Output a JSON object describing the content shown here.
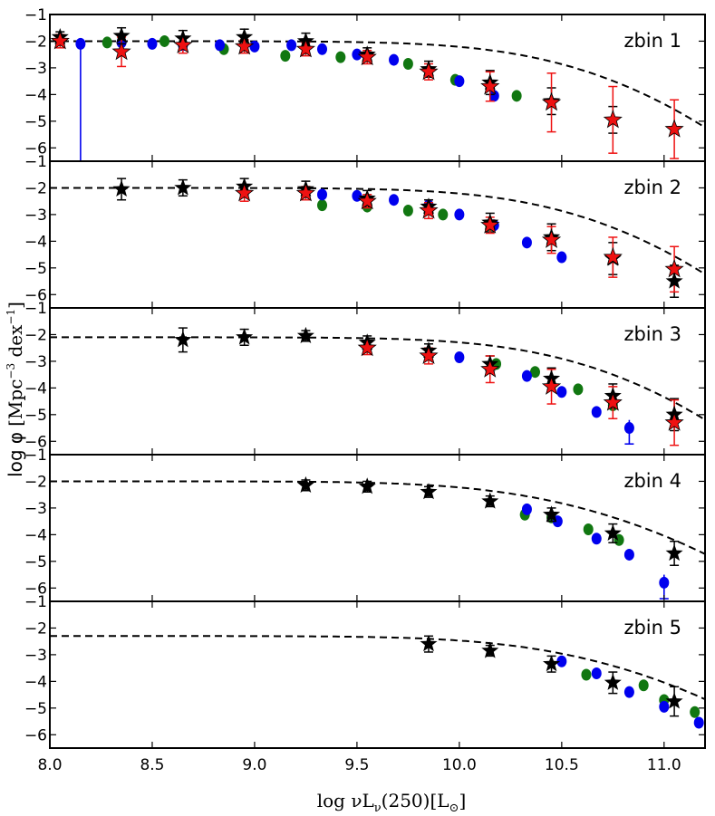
{
  "chart_data": {
    "type": "scatter",
    "xlabel": "log νL",
    "xlabel_sub": "ν",
    "xlabel_rest": "(250)[L",
    "xlabel_sunsub": "⊙",
    "xlabel_end": "]",
    "ylabel_main": "log φ",
    "ylabel_units": "[Mpc",
    "ylabel_sup1": "−3",
    "ylabel_mid": " dex",
    "ylabel_sup2": "−1",
    "ylabel_end": "]",
    "xlim": [
      8.0,
      11.2
    ],
    "ylim": [
      -6.5,
      -1
    ],
    "xticks": [
      "8.0",
      "8.5",
      "9.0",
      "9.5",
      "10.0",
      "10.5",
      "11.0"
    ],
    "yticks": [
      "−1",
      "−2",
      "−3",
      "−4",
      "−5",
      "−6"
    ],
    "colors": {
      "blue": "#0000ee",
      "green": "#117711",
      "red": "#ee1111",
      "black": "#000000"
    },
    "panels": [
      {
        "label": "zbin 1",
        "model": {
          "phi_star": -2.0,
          "log_L_star": 9.95,
          "alpha": 1.0,
          "sigma": 0.33
        },
        "blue": [
          [
            8.15,
            -2.1
          ],
          [
            8.35,
            -2.05
          ],
          [
            8.5,
            -2.1
          ],
          [
            8.65,
            -2.15
          ],
          [
            8.83,
            -2.15
          ],
          [
            9.0,
            -2.2
          ],
          [
            9.18,
            -2.15
          ],
          [
            9.33,
            -2.3
          ],
          [
            9.5,
            -2.5
          ],
          [
            9.68,
            -2.7
          ],
          [
            10.0,
            -3.5
          ],
          [
            10.17,
            -4.05
          ]
        ],
        "blue_err": [
          [
            8.15,
            -2.1,
            -6.5,
            -2.05
          ]
        ],
        "green": [
          [
            8.28,
            -2.05
          ],
          [
            8.56,
            -2.0
          ],
          [
            8.85,
            -2.3
          ],
          [
            9.15,
            -2.55
          ],
          [
            9.42,
            -2.6
          ],
          [
            9.75,
            -2.85
          ],
          [
            9.98,
            -3.45
          ],
          [
            10.28,
            -4.05
          ]
        ],
        "red": [
          [
            8.05,
            -2.0,
            0.25
          ],
          [
            8.35,
            -2.4,
            0.55
          ],
          [
            8.65,
            -2.15,
            0.3
          ],
          [
            8.95,
            -2.2,
            0.25
          ],
          [
            9.25,
            -2.3,
            0.25
          ],
          [
            9.55,
            -2.6,
            0.25
          ],
          [
            9.85,
            -3.15,
            0.3
          ],
          [
            10.15,
            -3.7,
            0.55
          ],
          [
            10.45,
            -4.3,
            1.1
          ],
          [
            10.75,
            -4.95,
            1.25
          ],
          [
            11.05,
            -5.3,
            1.1
          ]
        ],
        "black": [
          [
            8.05,
            -1.85,
            0.2
          ],
          [
            8.35,
            -1.8,
            0.3
          ],
          [
            8.65,
            -1.9,
            0.3
          ],
          [
            8.95,
            -1.85,
            0.3
          ],
          [
            9.25,
            -2.0,
            0.3
          ],
          [
            9.55,
            -2.5,
            0.25
          ],
          [
            9.85,
            -3.05,
            0.3
          ],
          [
            10.15,
            -3.55,
            0.45
          ],
          [
            10.45,
            -4.25,
            0.5
          ],
          [
            10.75,
            -4.95,
            0.5
          ]
        ]
      },
      {
        "label": "zbin 2",
        "model": {
          "phi_star": -2.0,
          "log_L_star": 9.95,
          "alpha": 1.0,
          "sigma": 0.33
        },
        "blue": [
          [
            9.33,
            -2.25
          ],
          [
            9.5,
            -2.3
          ],
          [
            9.68,
            -2.45
          ],
          [
            9.85,
            -2.65
          ],
          [
            10.0,
            -3.0
          ],
          [
            10.17,
            -3.4
          ],
          [
            10.33,
            -4.05
          ],
          [
            10.5,
            -4.6
          ]
        ],
        "blue_err": [],
        "green": [
          [
            9.33,
            -2.65
          ],
          [
            9.55,
            -2.7
          ],
          [
            9.75,
            -2.85
          ],
          [
            9.92,
            -3.0
          ],
          [
            10.15,
            -3.4
          ]
        ],
        "red": [
          [
            8.95,
            -2.2,
            0.3
          ],
          [
            9.25,
            -2.2,
            0.25
          ],
          [
            9.55,
            -2.5,
            0.25
          ],
          [
            9.85,
            -2.85,
            0.3
          ],
          [
            10.15,
            -3.4,
            0.3
          ],
          [
            10.45,
            -3.95,
            0.5
          ],
          [
            10.75,
            -4.6,
            0.75
          ],
          [
            11.05,
            -5.05,
            0.85
          ]
        ],
        "black": [
          [
            8.35,
            -2.05,
            0.4
          ],
          [
            8.65,
            -2.0,
            0.3
          ],
          [
            8.95,
            -1.95,
            0.3
          ],
          [
            9.25,
            -2.05,
            0.3
          ],
          [
            9.55,
            -2.4,
            0.3
          ],
          [
            9.85,
            -2.7,
            0.25
          ],
          [
            10.15,
            -3.3,
            0.35
          ],
          [
            10.45,
            -3.85,
            0.5
          ],
          [
            10.75,
            -4.65,
            0.6
          ],
          [
            11.05,
            -5.5,
            0.6
          ]
        ]
      },
      {
        "label": "zbin 3",
        "model": {
          "phi_star": -2.1,
          "log_L_star": 9.98,
          "alpha": 1.0,
          "sigma": 0.33
        },
        "blue": [
          [
            10.0,
            -2.85
          ],
          [
            10.33,
            -3.55
          ],
          [
            10.5,
            -4.15
          ],
          [
            10.67,
            -4.9
          ],
          [
            10.83,
            -5.5
          ]
        ],
        "blue_err": [
          [
            10.83,
            -5.5,
            -6.1,
            -5.2
          ]
        ],
        "green": [
          [
            10.18,
            -3.1
          ],
          [
            10.37,
            -3.4
          ],
          [
            10.58,
            -4.05
          ],
          [
            10.75,
            -4.65
          ]
        ],
        "red": [
          [
            9.55,
            -2.5,
            0.25
          ],
          [
            9.85,
            -2.8,
            0.3
          ],
          [
            10.15,
            -3.3,
            0.5
          ],
          [
            10.45,
            -3.95,
            0.65
          ],
          [
            10.75,
            -4.55,
            0.6
          ],
          [
            11.05,
            -5.3,
            0.85
          ]
        ],
        "black": [
          [
            8.65,
            -2.2,
            0.45
          ],
          [
            8.95,
            -2.1,
            0.3
          ],
          [
            9.25,
            -2.05,
            0.2
          ],
          [
            9.55,
            -2.3,
            0.25
          ],
          [
            9.85,
            -2.6,
            0.25
          ],
          [
            10.15,
            -3.1,
            0.3
          ],
          [
            10.45,
            -3.65,
            0.4
          ],
          [
            10.75,
            -4.3,
            0.45
          ],
          [
            11.05,
            -5.0,
            0.6
          ]
        ]
      },
      {
        "label": "zbin 4",
        "model": {
          "phi_star": -2.0,
          "log_L_star": 9.8,
          "alpha": 1.0,
          "sigma": 0.4
        },
        "blue": [
          [
            10.33,
            -3.05
          ],
          [
            10.48,
            -3.5
          ],
          [
            10.67,
            -4.15
          ],
          [
            10.83,
            -4.75
          ],
          [
            11.0,
            -5.8
          ]
        ],
        "blue_err": [
          [
            11.0,
            -5.8,
            -6.4,
            -5.5
          ]
        ],
        "green": [
          [
            10.32,
            -3.25
          ],
          [
            10.45,
            -3.35
          ],
          [
            10.63,
            -3.8
          ],
          [
            10.78,
            -4.2
          ]
        ],
        "red": [],
        "black": [
          [
            9.25,
            -2.15,
            0.2
          ],
          [
            9.55,
            -2.2,
            0.2
          ],
          [
            9.85,
            -2.4,
            0.2
          ],
          [
            10.15,
            -2.75,
            0.2
          ],
          [
            10.45,
            -3.25,
            0.25
          ],
          [
            10.75,
            -3.95,
            0.35
          ],
          [
            11.05,
            -4.7,
            0.45
          ]
        ]
      },
      {
        "label": "zbin 5",
        "model": {
          "phi_star": -2.3,
          "log_L_star": 9.9,
          "alpha": 1.0,
          "sigma": 0.4
        },
        "blue": [
          [
            10.5,
            -3.25
          ],
          [
            10.67,
            -3.7
          ],
          [
            10.83,
            -4.4
          ],
          [
            11.0,
            -4.95
          ],
          [
            11.17,
            -5.55
          ]
        ],
        "blue_err": [],
        "green": [
          [
            10.62,
            -3.75
          ],
          [
            10.9,
            -4.15
          ],
          [
            11.0,
            -4.7
          ],
          [
            11.15,
            -5.15
          ]
        ],
        "red": [],
        "black": [
          [
            9.85,
            -2.6,
            0.3
          ],
          [
            10.15,
            -2.85,
            0.2
          ],
          [
            10.45,
            -3.35,
            0.3
          ],
          [
            10.75,
            -4.05,
            0.4
          ],
          [
            11.05,
            -4.75,
            0.55
          ]
        ]
      }
    ]
  }
}
